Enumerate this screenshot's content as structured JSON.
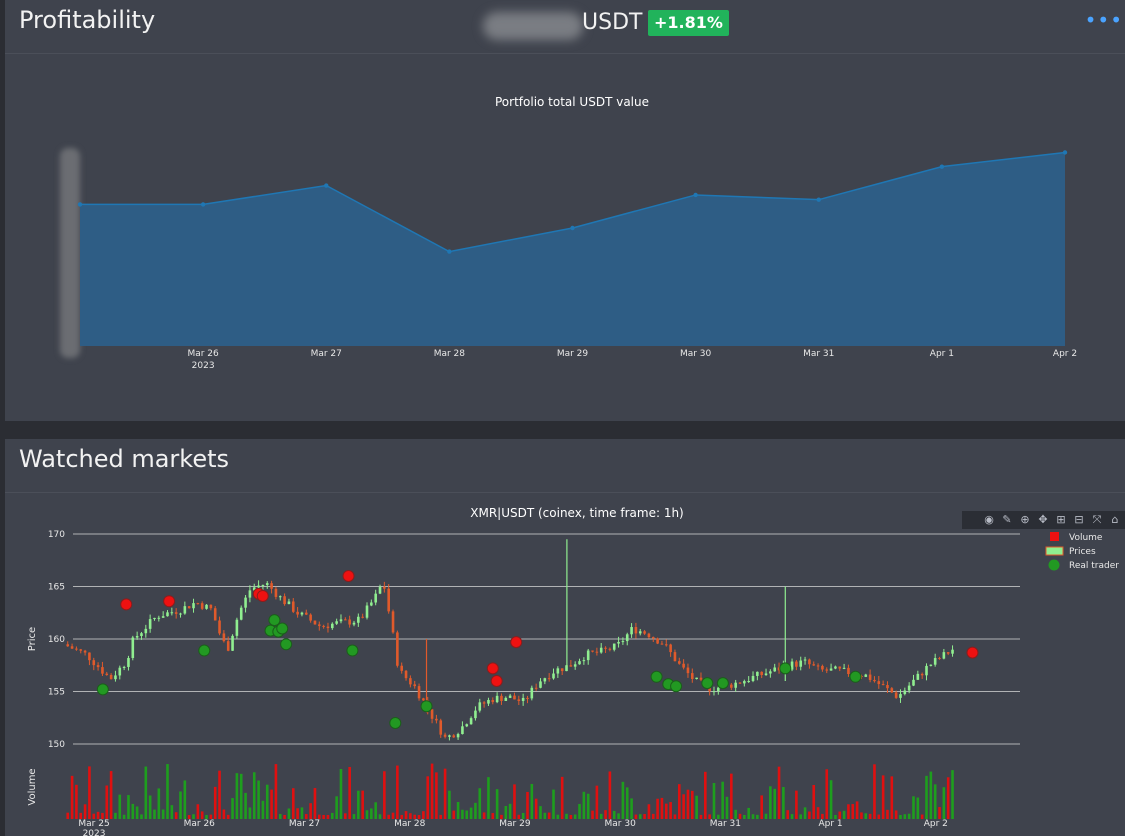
{
  "profitability": {
    "title": "Profitability",
    "currency": "USDT",
    "change": "+1.81%",
    "menu_icon": "more-dots-icon"
  },
  "markets": {
    "title": "Watched markets"
  },
  "colors": {
    "panel": "#3f434d",
    "area_fill": "#2e5d85",
    "area_line": "#1f77b4",
    "up": "#90ee90",
    "down": "#e05a2b",
    "volume_up": "#1e9e1e",
    "volume_down": "#e01010",
    "marker_red": "#ee1111",
    "marker_green": "#229922",
    "badge": "#21b35b"
  },
  "chart_data": [
    {
      "type": "area",
      "title": "Portfolio total USDT value",
      "x": [
        "2023-03-25",
        "2023-03-26",
        "2023-03-27",
        "2023-03-28",
        "2023-03-29",
        "2023-03-30",
        "2023-03-31",
        "2023-04-01",
        "2023-04-02"
      ],
      "values": [
        0.6,
        0.6,
        0.68,
        0.4,
        0.5,
        0.64,
        0.62,
        0.76,
        0.82
      ],
      "ylim": [
        0,
        1
      ],
      "x_tick_labels": [
        "Mar 26",
        "Mar 27",
        "Mar 28",
        "Mar 29",
        "Mar 30",
        "Mar 31",
        "Apr 1",
        "Apr 2"
      ],
      "x_tick_sublabel": "2023",
      "grid": false
    },
    {
      "type": "candlestick",
      "title": "XMR|USDT (coinex, time frame: 1h)",
      "ylabel": "Price",
      "y_tick_labels": [
        "170",
        "165",
        "160",
        "155",
        "150"
      ],
      "ylim": [
        150,
        170
      ],
      "x_tick_labels": [
        "Mar 25",
        "Mar 26",
        "Mar 27",
        "Mar 28",
        "Mar 29",
        "Mar 30",
        "Mar 31",
        "Apr 1",
        "Apr 2"
      ],
      "x_tick_sublabel": "2023",
      "x_start": "2023-03-24T20:00",
      "x_range_days": [
        -0.2,
        8.8
      ],
      "grid": true,
      "legend_position": "top-right",
      "legend": [
        "Volume",
        "Prices",
        "Real trader"
      ],
      "price_path": [
        [
          0.0,
          159.5
        ],
        [
          0.3,
          158.5
        ],
        [
          0.6,
          156.2
        ],
        [
          0.8,
          157.8
        ],
        [
          0.9,
          160.0
        ],
        [
          1.2,
          162.2
        ],
        [
          1.5,
          162.8
        ],
        [
          1.7,
          163.5
        ],
        [
          1.9,
          162.8
        ],
        [
          2.0,
          160.6
        ],
        [
          2.1,
          158.9
        ],
        [
          2.25,
          162.5
        ],
        [
          2.4,
          164.8
        ],
        [
          2.6,
          165.3
        ],
        [
          2.8,
          163.8
        ],
        [
          3.0,
          162.5
        ],
        [
          3.3,
          161.2
        ],
        [
          3.5,
          161.5
        ],
        [
          3.8,
          161.8
        ],
        [
          4.0,
          164.0
        ],
        [
          4.1,
          165.5
        ],
        [
          4.2,
          161.5
        ],
        [
          4.3,
          157.0
        ],
        [
          4.5,
          155.5
        ],
        [
          4.7,
          153.0
        ],
        [
          4.9,
          150.5
        ],
        [
          5.1,
          151.5
        ],
        [
          5.3,
          153.5
        ],
        [
          5.5,
          154.3
        ],
        [
          5.7,
          154.5
        ],
        [
          5.9,
          154.0
        ],
        [
          6.1,
          156.0
        ],
        [
          6.3,
          157.0
        ],
        [
          6.5,
          157.5
        ],
        [
          6.7,
          158.5
        ],
        [
          6.9,
          158.8
        ],
        [
          7.1,
          159.3
        ],
        [
          7.3,
          161.0
        ],
        [
          7.5,
          160.5
        ],
        [
          7.7,
          159.5
        ],
        [
          7.9,
          157.5
        ],
        [
          8.1,
          156.0
        ],
        [
          8.3,
          155.3
        ],
        [
          8.5,
          155.5
        ],
        [
          8.7,
          156.0
        ],
        [
          8.9,
          156.5
        ],
        [
          9.1,
          157.0
        ],
        [
          9.3,
          157.5
        ],
        [
          9.5,
          157.8
        ],
        [
          9.7,
          157.0
        ],
        [
          9.9,
          157.0
        ],
        [
          10.1,
          156.8
        ],
        [
          10.3,
          156.5
        ],
        [
          10.5,
          155.5
        ],
        [
          10.7,
          154.5
        ],
        [
          10.9,
          156.0
        ],
        [
          11.1,
          157.5
        ],
        [
          11.3,
          158.5
        ],
        [
          11.4,
          159.0
        ]
      ],
      "spikes": [
        {
          "t": 6.4,
          "high": 169.5,
          "low": 157
        },
        {
          "t": 4.6,
          "high": 160.0,
          "low": 153
        },
        {
          "t": 9.2,
          "high": 165.0,
          "low": 156
        }
      ],
      "markers_red": [
        [
          0.75,
          163.3
        ],
        [
          1.3,
          163.6
        ],
        [
          2.45,
          164.3
        ],
        [
          2.5,
          164.1
        ],
        [
          3.6,
          166.0
        ],
        [
          5.45,
          157.2
        ],
        [
          5.5,
          156.0
        ],
        [
          5.75,
          159.7
        ],
        [
          11.6,
          158.7
        ]
      ],
      "markers_green": [
        [
          0.45,
          155.2
        ],
        [
          1.75,
          158.9
        ],
        [
          2.6,
          160.8
        ],
        [
          2.65,
          161.8
        ],
        [
          2.7,
          160.7
        ],
        [
          2.75,
          161.0
        ],
        [
          2.8,
          159.5
        ],
        [
          3.65,
          158.9
        ],
        [
          4.2,
          152.0
        ],
        [
          4.6,
          153.6
        ],
        [
          7.55,
          156.4
        ],
        [
          7.7,
          155.7
        ],
        [
          7.8,
          155.5
        ],
        [
          8.2,
          155.8
        ],
        [
          8.4,
          155.8
        ],
        [
          9.2,
          157.2
        ],
        [
          10.1,
          156.4
        ]
      ],
      "volume_scale": "relative"
    }
  ]
}
